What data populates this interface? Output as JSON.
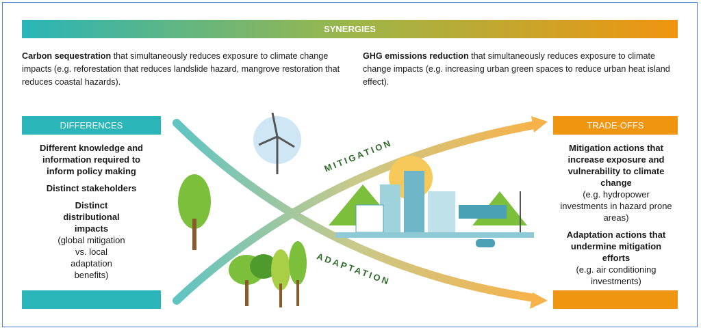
{
  "synergies": {
    "title": "SYNERGIES",
    "left": {
      "bold": "Carbon sequestration",
      "text": " that simultaneously reduces exposure to climate change impacts (e.g. reforestation that reduces landslide hazard, mangrove restoration that reduces coastal hazards)."
    },
    "right": {
      "bold": "GHG emissions reduction",
      "text": " that simultaneously reduces exposure to climate change impacts (e.g. increasing urban green spaces to reduce urban heat island effect)."
    }
  },
  "differences": {
    "title": "DIFFERENCES",
    "items": [
      {
        "bold": "Different knowledge and information required to inform policy making"
      },
      {
        "bold": "Distinct stakeholders"
      },
      {
        "bold": "Distinct distributional impacts",
        "note": "(global mitigation vs. local adaptation benefits)"
      }
    ]
  },
  "tradeoffs": {
    "title": "TRADE-OFFS",
    "items": [
      {
        "bold": "Mitigation actions that increase exposure and vulnerability to climate change",
        "note": "(e.g. hydropower investments in hazard prone areas)"
      },
      {
        "bold": "Adaptation actions that undermine mitigation efforts",
        "note": "(e.g. air conditioning investments)"
      }
    ]
  },
  "labels": {
    "mitigation": "MITIGATION",
    "adaptation": "ADAPTATION"
  }
}
